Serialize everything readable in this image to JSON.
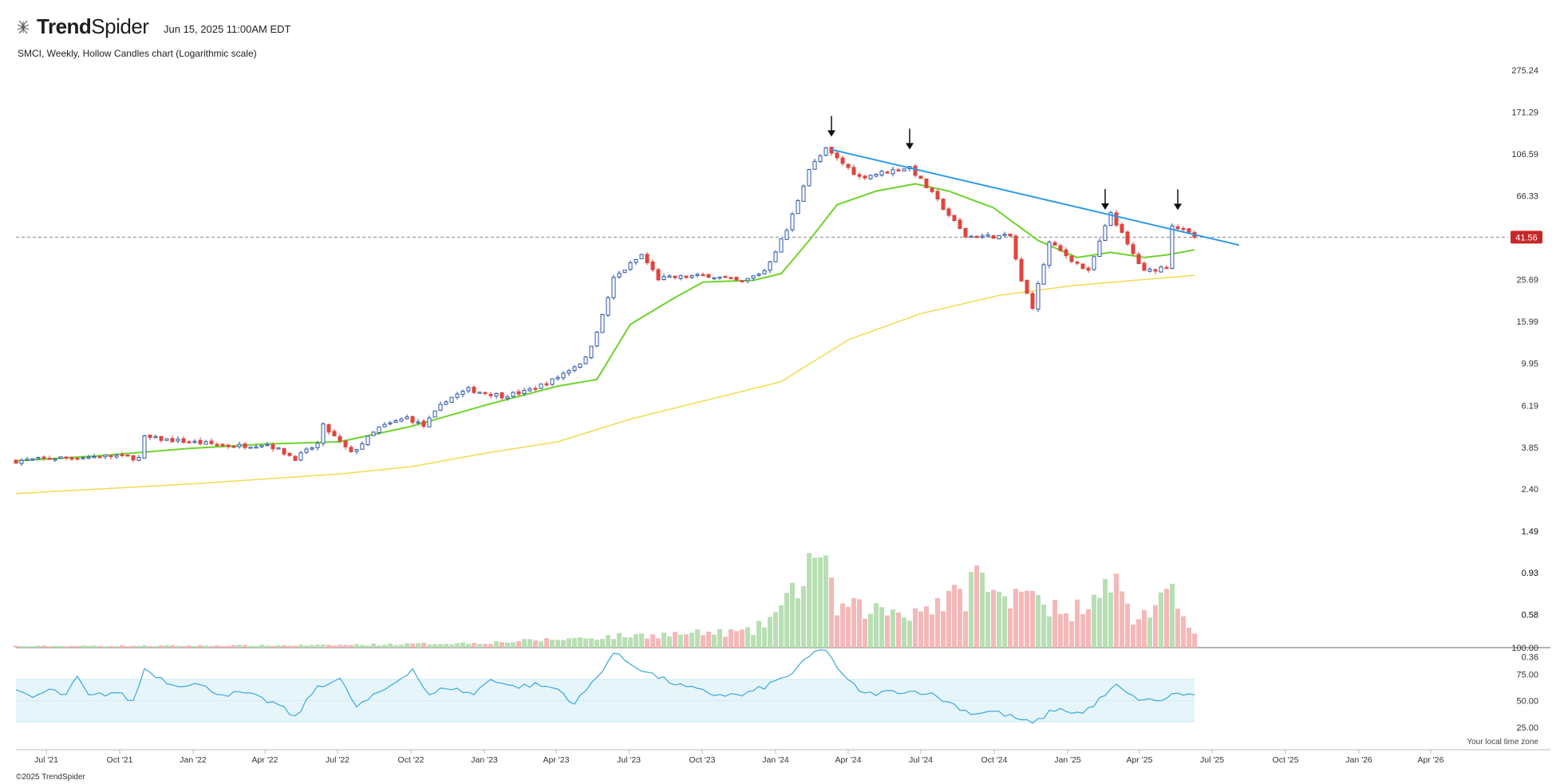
{
  "header": {
    "brand": "TrendSpider",
    "timestamp": "Jun 15, 2025 11:00AM EDT",
    "subtitle": "SMCI, Weekly, Hollow Candles chart (Logarithmic scale)"
  },
  "footer": {
    "copyright": "©2025 TrendSpider",
    "timezone_note": "Your local time zone"
  },
  "colors": {
    "up": "#2d55a8",
    "down": "#e0443e",
    "vol_up": "#b8dfb3",
    "vol_down": "#f4b8b8",
    "sma_short": "#6ed32c",
    "sma_long": "#f0dc50",
    "trendline": "#2c9ae6",
    "rsi_line": "#3aa8d8",
    "rsi_band": "#e6f5fa",
    "price_badge": "#c62828"
  },
  "chart_data": {
    "type": "candlestick",
    "title": "SMCI, Weekly, Hollow Candles chart (Logarithmic scale)",
    "y_scale": "log",
    "price_axis_ticks": [
      "275.24",
      "171.29",
      "106.59",
      "66.33",
      "41.56",
      "25.69",
      "15.99",
      "9.95",
      "6.19",
      "3.85",
      "2.40",
      "1.49",
      "0.93",
      "0.58",
      "0.36"
    ],
    "x_axis_ticks": [
      "Jul '21",
      "Oct '21",
      "Jan '22",
      "Apr '22",
      "Jul '22",
      "Oct '22",
      "Jan '23",
      "Apr '23",
      "Jul '23",
      "Oct '23",
      "Jan '24",
      "Apr '24",
      "Jul '24",
      "Oct '24",
      "Jan '25",
      "Apr '25",
      "Jul '25",
      "Oct '25",
      "Jan '26",
      "Apr '26"
    ],
    "last_price": "41.56",
    "price_path": [
      [
        "2021-05-24",
        3.3
      ],
      [
        "2021-07-05",
        3.4
      ],
      [
        "2021-09-27",
        3.5
      ],
      [
        "2021-10-25",
        3.4
      ],
      [
        "2021-11-01",
        4.3
      ],
      [
        "2021-12-27",
        4.1
      ],
      [
        "2022-02-21",
        3.9
      ],
      [
        "2022-04-04",
        4.0
      ],
      [
        "2022-05-09",
        3.4
      ],
      [
        "2022-06-06",
        4.0
      ],
      [
        "2022-06-13",
        4.9
      ],
      [
        "2022-07-18",
        3.6
      ],
      [
        "2022-08-22",
        4.8
      ],
      [
        "2022-09-26",
        5.4
      ],
      [
        "2022-10-17",
        4.9
      ],
      [
        "2022-11-14",
        6.6
      ],
      [
        "2022-12-12",
        7.4
      ],
      [
        "2023-01-23",
        6.9
      ],
      [
        "2023-02-20",
        7.2
      ],
      [
        "2023-03-27",
        8.2
      ],
      [
        "2023-05-08",
        10.5
      ],
      [
        "2023-05-29",
        17.0
      ],
      [
        "2023-06-12",
        26.0
      ],
      [
        "2023-07-17",
        34.0
      ],
      [
        "2023-08-07",
        26.0
      ],
      [
        "2023-10-09",
        27.0
      ],
      [
        "2023-11-20",
        25.0
      ],
      [
        "2023-12-18",
        28.5
      ],
      [
        "2024-01-15",
        45.0
      ],
      [
        "2024-02-12",
        90.0
      ],
      [
        "2024-03-04",
        112.0
      ],
      [
        "2024-04-15",
        82.0
      ],
      [
        "2024-06-17",
        92.0
      ],
      [
        "2024-07-15",
        68.0
      ],
      [
        "2024-08-26",
        42.0
      ],
      [
        "2024-10-21",
        42.0
      ],
      [
        "2024-11-04",
        25.0
      ],
      [
        "2024-11-18",
        19.0
      ],
      [
        "2024-12-09",
        39.0
      ],
      [
        "2025-01-27",
        28.0
      ],
      [
        "2025-02-24",
        55.0
      ],
      [
        "2025-03-17",
        38.0
      ],
      [
        "2025-04-07",
        28.0
      ],
      [
        "2025-05-05",
        30.0
      ],
      [
        "2025-05-12",
        48.0
      ],
      [
        "2025-06-09",
        41.56
      ]
    ],
    "volume_path": [
      [
        "2021-05-24",
        0.02
      ],
      [
        "2022-06-13",
        0.03
      ],
      [
        "2023-01-02",
        0.06
      ],
      [
        "2023-07-03",
        0.15
      ],
      [
        "2023-12-04",
        0.2
      ],
      [
        "2024-01-15",
        0.55
      ],
      [
        "2024-02-12",
        1.05
      ],
      [
        "2024-02-19",
        1.3
      ],
      [
        "2024-03-18",
        0.5
      ],
      [
        "2024-06-17",
        0.45
      ],
      [
        "2024-08-05",
        0.6
      ],
      [
        "2024-08-26",
        0.65
      ],
      [
        "2024-09-02",
        0.95
      ],
      [
        "2024-10-21",
        0.5
      ],
      [
        "2024-11-04",
        0.97
      ],
      [
        "2024-11-18",
        0.75
      ],
      [
        "2024-12-30",
        0.35
      ],
      [
        "2025-02-10",
        0.8
      ],
      [
        "2025-02-24",
        0.92
      ],
      [
        "2025-03-24",
        0.35
      ],
      [
        "2025-05-12",
        0.62
      ],
      [
        "2025-06-09",
        0.25
      ]
    ],
    "volume_axis_ticks": [
      "1.49",
      "0.93",
      "0.58"
    ],
    "moving_averages": {
      "short_points": [
        [
          "2021-05-24",
          3.3
        ],
        [
          "2021-09-06",
          3.5
        ],
        [
          "2021-12-27",
          3.8
        ],
        [
          "2022-04-04",
          4.0
        ],
        [
          "2022-07-04",
          4.1
        ],
        [
          "2022-10-03",
          4.9
        ],
        [
          "2023-01-02",
          6.2
        ],
        [
          "2023-04-03",
          7.7
        ],
        [
          "2023-05-22",
          8.3
        ],
        [
          "2023-07-03",
          15.5
        ],
        [
          "2023-08-28",
          21.0
        ],
        [
          "2023-10-02",
          25.0
        ],
        [
          "2023-12-04",
          25.5
        ],
        [
          "2024-01-08",
          27.5
        ],
        [
          "2024-02-12",
          40.0
        ],
        [
          "2024-03-18",
          60.0
        ],
        [
          "2024-05-06",
          70.0
        ],
        [
          "2024-06-24",
          76.0
        ],
        [
          "2024-08-05",
          70.0
        ],
        [
          "2024-09-30",
          58.0
        ],
        [
          "2024-11-25",
          40.0
        ],
        [
          "2025-01-13",
          33.0
        ],
        [
          "2025-02-24",
          35.0
        ],
        [
          "2025-04-07",
          33.0
        ],
        [
          "2025-05-05",
          34.0
        ],
        [
          "2025-06-09",
          36.0
        ]
      ],
      "long_points": [
        [
          "2021-05-24",
          2.28
        ],
        [
          "2022-01-03",
          2.55
        ],
        [
          "2022-07-04",
          2.85
        ],
        [
          "2022-10-03",
          3.1
        ],
        [
          "2023-01-02",
          3.6
        ],
        [
          "2023-04-03",
          4.1
        ],
        [
          "2023-07-03",
          5.3
        ],
        [
          "2023-10-02",
          6.5
        ],
        [
          "2024-01-08",
          8.1
        ],
        [
          "2024-04-01",
          13.0
        ],
        [
          "2024-07-01",
          17.5
        ],
        [
          "2024-10-07",
          21.5
        ],
        [
          "2025-01-06",
          24.0
        ],
        [
          "2025-06-09",
          27.0
        ]
      ]
    },
    "trendline": {
      "from": [
        "2024-03-11",
        112.0
      ],
      "to": [
        "2025-08-04",
        38.0
      ]
    },
    "peak_markers": [
      "2024-03-11",
      "2024-06-17",
      "2025-02-17",
      "2025-05-19"
    ],
    "rsi": {
      "axis_ticks": [
        "100.00",
        "75.00",
        "50.00",
        "25.00"
      ],
      "band": [
        30,
        70
      ],
      "path": [
        [
          "2021-05-24",
          58
        ],
        [
          "2021-06-14",
          53
        ],
        [
          "2021-07-05",
          60
        ],
        [
          "2021-07-26",
          55
        ],
        [
          "2021-08-09",
          72
        ],
        [
          "2021-08-23",
          54
        ],
        [
          "2021-09-27",
          58
        ],
        [
          "2021-10-18",
          49
        ],
        [
          "2021-11-01",
          80
        ],
        [
          "2021-12-06",
          65
        ],
        [
          "2022-01-03",
          66
        ],
        [
          "2022-02-07",
          56
        ],
        [
          "2022-03-07",
          57
        ],
        [
          "2022-04-18",
          46
        ],
        [
          "2022-05-09",
          34
        ],
        [
          "2022-06-06",
          64
        ],
        [
          "2022-07-04",
          70
        ],
        [
          "2022-07-25",
          44
        ],
        [
          "2022-09-05",
          64
        ],
        [
          "2022-10-03",
          80
        ],
        [
          "2022-10-24",
          54
        ],
        [
          "2022-11-14",
          63
        ],
        [
          "2022-12-19",
          56
        ],
        [
          "2023-01-09",
          71
        ],
        [
          "2023-02-06",
          63
        ],
        [
          "2023-03-06",
          65
        ],
        [
          "2023-04-03",
          61
        ],
        [
          "2023-04-24",
          47
        ],
        [
          "2023-05-22",
          72
        ],
        [
          "2023-06-12",
          95
        ],
        [
          "2023-07-03",
          85
        ],
        [
          "2023-08-07",
          72
        ],
        [
          "2023-09-04",
          64
        ],
        [
          "2023-10-16",
          56
        ],
        [
          "2023-11-20",
          55
        ],
        [
          "2023-12-18",
          63
        ],
        [
          "2024-01-22",
          76
        ],
        [
          "2024-02-19",
          96
        ],
        [
          "2024-03-04",
          99
        ],
        [
          "2024-03-25",
          73
        ],
        [
          "2024-04-22",
          56
        ],
        [
          "2024-06-03",
          59
        ],
        [
          "2024-07-08",
          58
        ],
        [
          "2024-08-12",
          46
        ],
        [
          "2024-09-02",
          38
        ],
        [
          "2024-09-30",
          40
        ],
        [
          "2024-11-04",
          32
        ],
        [
          "2024-11-18",
          28
        ],
        [
          "2024-12-16",
          42
        ],
        [
          "2025-01-20",
          38
        ],
        [
          "2025-03-03",
          64
        ],
        [
          "2025-03-24",
          53
        ],
        [
          "2025-04-21",
          49
        ],
        [
          "2025-05-19",
          57
        ],
        [
          "2025-06-09",
          55
        ]
      ]
    }
  }
}
